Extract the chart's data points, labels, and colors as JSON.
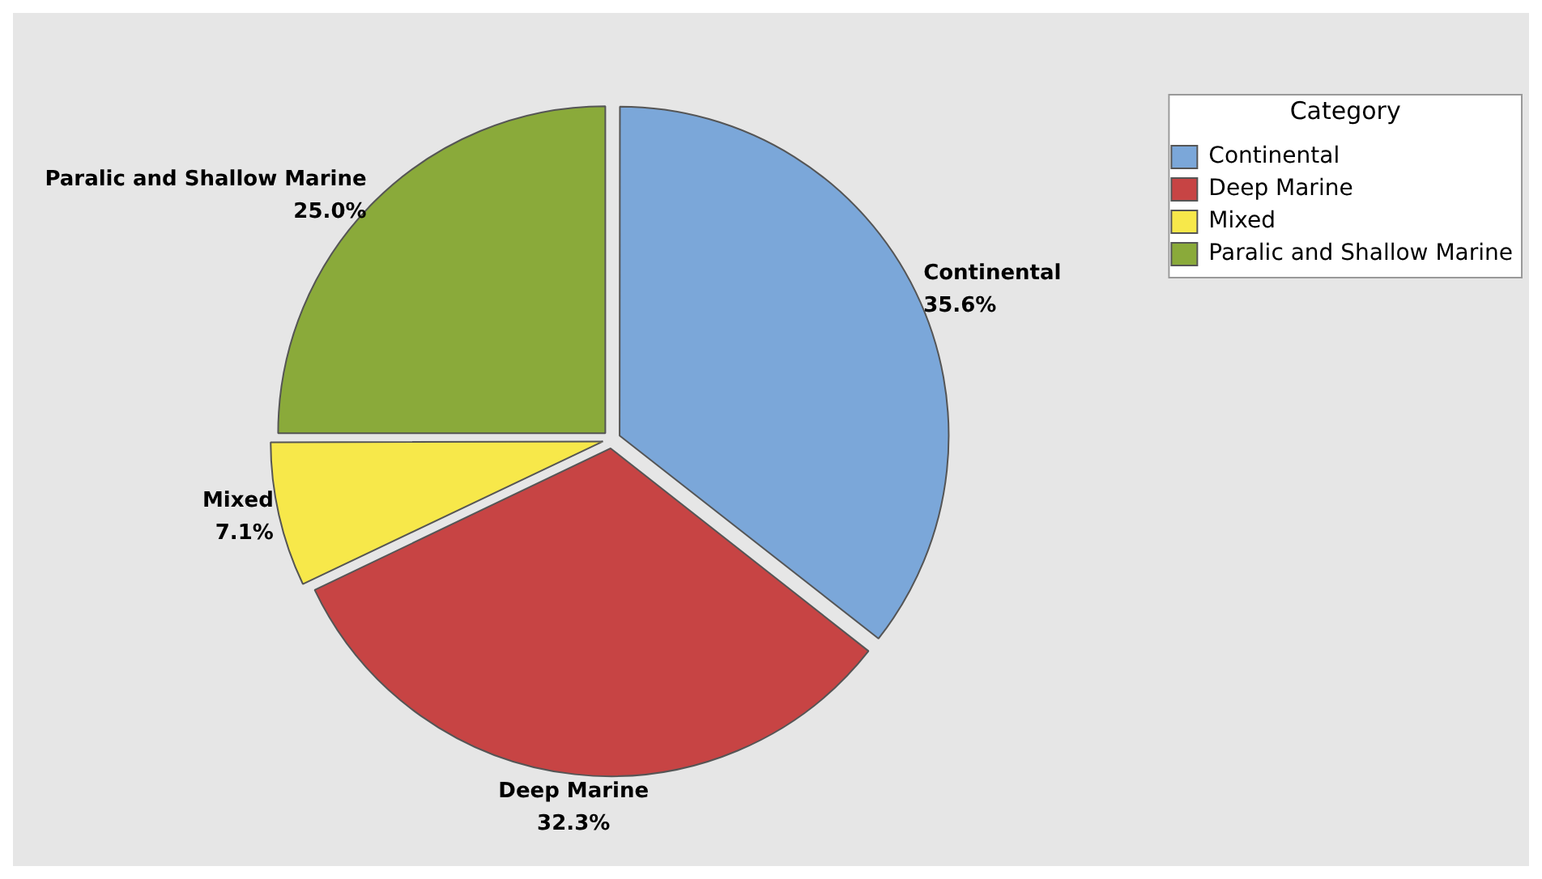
{
  "chart_data": {
    "type": "pie",
    "categories": [
      "Continental",
      "Deep Marine",
      "Mixed",
      "Paralic and Shallow Marine"
    ],
    "values": [
      35.6,
      32.3,
      7.1,
      25.0
    ],
    "colors": [
      "#7ba7d9",
      "#c74444",
      "#f7e84a",
      "#8aaa3a"
    ],
    "value_labels": [
      "35.6%",
      "32.3%",
      "7.1%",
      "25.0%"
    ],
    "legend_title": "Category",
    "legend": "top right"
  }
}
